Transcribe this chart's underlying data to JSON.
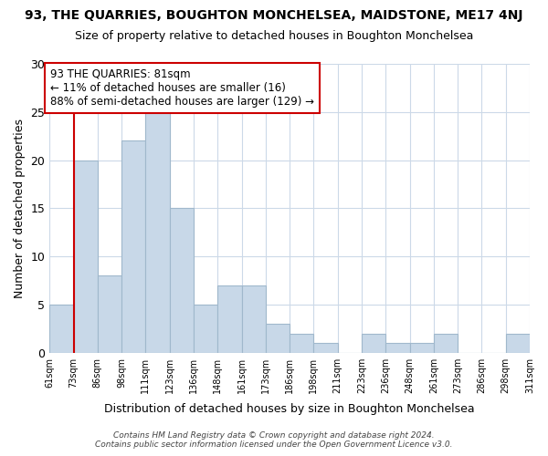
{
  "title": "93, THE QUARRIES, BOUGHTON MONCHELSEA, MAIDSTONE, ME17 4NJ",
  "subtitle": "Size of property relative to detached houses in Boughton Monchelsea",
  "xlabel": "Distribution of detached houses by size in Boughton Monchelsea",
  "ylabel": "Number of detached properties",
  "footer_line1": "Contains HM Land Registry data © Crown copyright and database right 2024.",
  "footer_line2": "Contains public sector information licensed under the Open Government Licence v3.0.",
  "bin_labels": [
    "61sqm",
    "73sqm",
    "86sqm",
    "98sqm",
    "111sqm",
    "123sqm",
    "136sqm",
    "148sqm",
    "161sqm",
    "173sqm",
    "186sqm",
    "198sqm",
    "211sqm",
    "223sqm",
    "236sqm",
    "248sqm",
    "261sqm",
    "273sqm",
    "286sqm",
    "298sqm",
    "311sqm"
  ],
  "bar_heights": [
    5,
    20,
    8,
    22,
    25,
    15,
    5,
    7,
    7,
    3,
    2,
    1,
    0,
    2,
    1,
    1,
    2,
    0,
    0,
    2,
    0
  ],
  "bar_color": "#c8d8e8",
  "bar_edge_color": "#a0b8cc",
  "reference_line_x": 1.0,
  "reference_line_color": "#cc0000",
  "ylim": [
    0,
    30
  ],
  "yticks": [
    0,
    5,
    10,
    15,
    20,
    25,
    30
  ],
  "annotation_text": "93 THE QUARRIES: 81sqm\n← 11% of detached houses are smaller (16)\n88% of semi-detached houses are larger (129) →",
  "annotation_box_color": "#ffffff",
  "annotation_box_edge": "#cc0000",
  "bg_color": "#ffffff",
  "grid_color": "#ccd9e8"
}
